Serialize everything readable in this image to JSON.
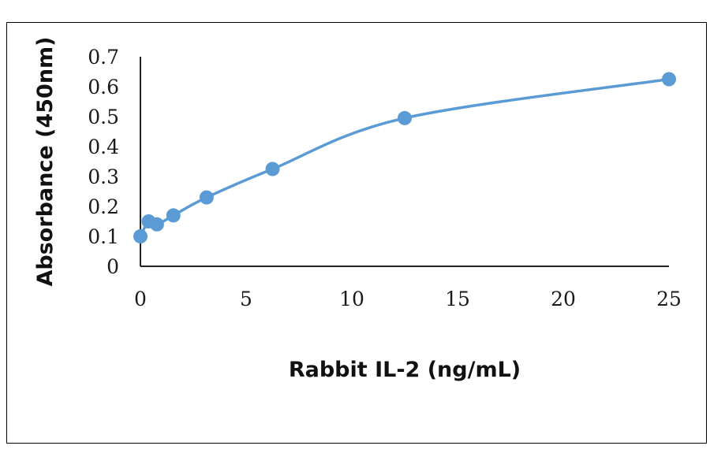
{
  "chart_data": {
    "type": "scatter",
    "title": "",
    "xlabel": "Rabbit IL-2 (ng/mL)",
    "ylabel": "Absorbance (450nm)",
    "xlim": [
      0,
      25
    ],
    "ylim": [
      0,
      0.7
    ],
    "x_ticks": [
      "0",
      "5",
      "10",
      "15",
      "20",
      "25"
    ],
    "y_ticks": [
      "0",
      "0.1",
      "0.2",
      "0.3",
      "0.4",
      "0.5",
      "0.6",
      "0.7"
    ],
    "grid": false,
    "legend": "none",
    "smooth_line": true,
    "color": "#5B9BD5",
    "series": [
      {
        "x": [
          0,
          0.39,
          0.78,
          1.56,
          3.13,
          6.25,
          12.5,
          25
        ],
        "y": [
          0.1,
          0.15,
          0.14,
          0.17,
          0.23,
          0.325,
          0.495,
          0.625
        ]
      }
    ]
  }
}
